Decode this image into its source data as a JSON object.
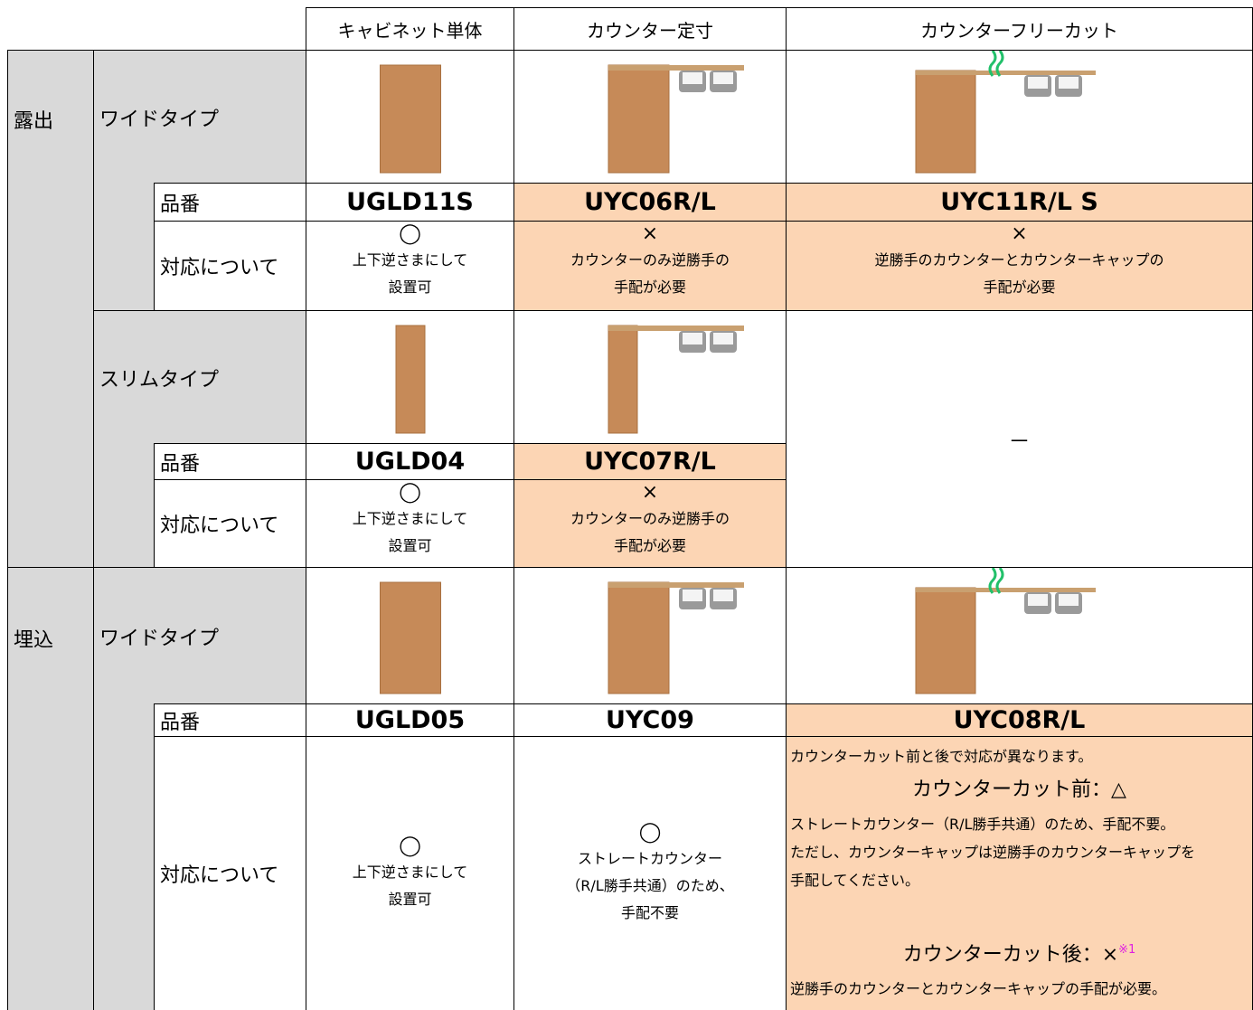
{
  "header": {
    "columns": [
      "キャビネット単体",
      "カウンター定寸",
      "カウンターフリーカット"
    ]
  },
  "sections": [
    {
      "label": "露出",
      "types": [
        {
          "label": "ワイドタイプ",
          "part_label": "品番",
          "support_label": "対応について",
          "parts": [
            "UGLD11S",
            "UYC06R/L",
            "UYC11R/L S"
          ],
          "support": [
            {
              "mark": "◯",
              "lines": [
                "上下逆さまにして",
                "設置可"
              ]
            },
            {
              "mark": "×",
              "lines": [
                "カウンターのみ逆勝手の",
                "手配が必要"
              ]
            },
            {
              "mark": "×",
              "lines": [
                "逆勝手のカウンターとカウンターキャップの",
                "手配が必要"
              ]
            }
          ]
        },
        {
          "label": "スリムタイプ",
          "part_label": "品番",
          "support_label": "対応について",
          "parts": [
            "UGLD04",
            "UYC07R/L"
          ],
          "support": [
            {
              "mark": "◯",
              "lines": [
                "上下逆さまにして",
                "設置可"
              ]
            },
            {
              "mark": "×",
              "lines": [
                "カウンターのみ逆勝手の",
                "手配が必要"
              ]
            }
          ],
          "unavailable": "－"
        }
      ]
    },
    {
      "label": "埋込",
      "types": [
        {
          "label": "ワイドタイプ",
          "part_label": "品番",
          "support_label": "対応について",
          "parts": [
            "UGLD05",
            "UYC09",
            "UYC08R/L"
          ],
          "support": [
            {
              "mark": "◯",
              "lines": [
                "上下逆さまにして",
                "設置可"
              ]
            },
            {
              "mark": "◯",
              "lines": [
                "ストレートカウンター",
                "（R/L勝手共通）のため、",
                "手配不要"
              ]
            },
            {
              "intro": "カウンターカット前と後で対応が異なります。",
              "before_heading": "カウンターカット前：△",
              "before_lines": [
                "ストレートカウンター（R/L勝手共通）のため、手配不要。",
                "ただし、カウンターキャップは逆勝手のカウンターキャップを",
                "手配してください。"
              ],
              "after_heading": "カウンターカット後：×",
              "after_note": "※1",
              "after_lines": [
                "逆勝手のカウンターとカウンターキャップの手配が必要。"
              ]
            }
          ]
        }
      ]
    }
  ]
}
